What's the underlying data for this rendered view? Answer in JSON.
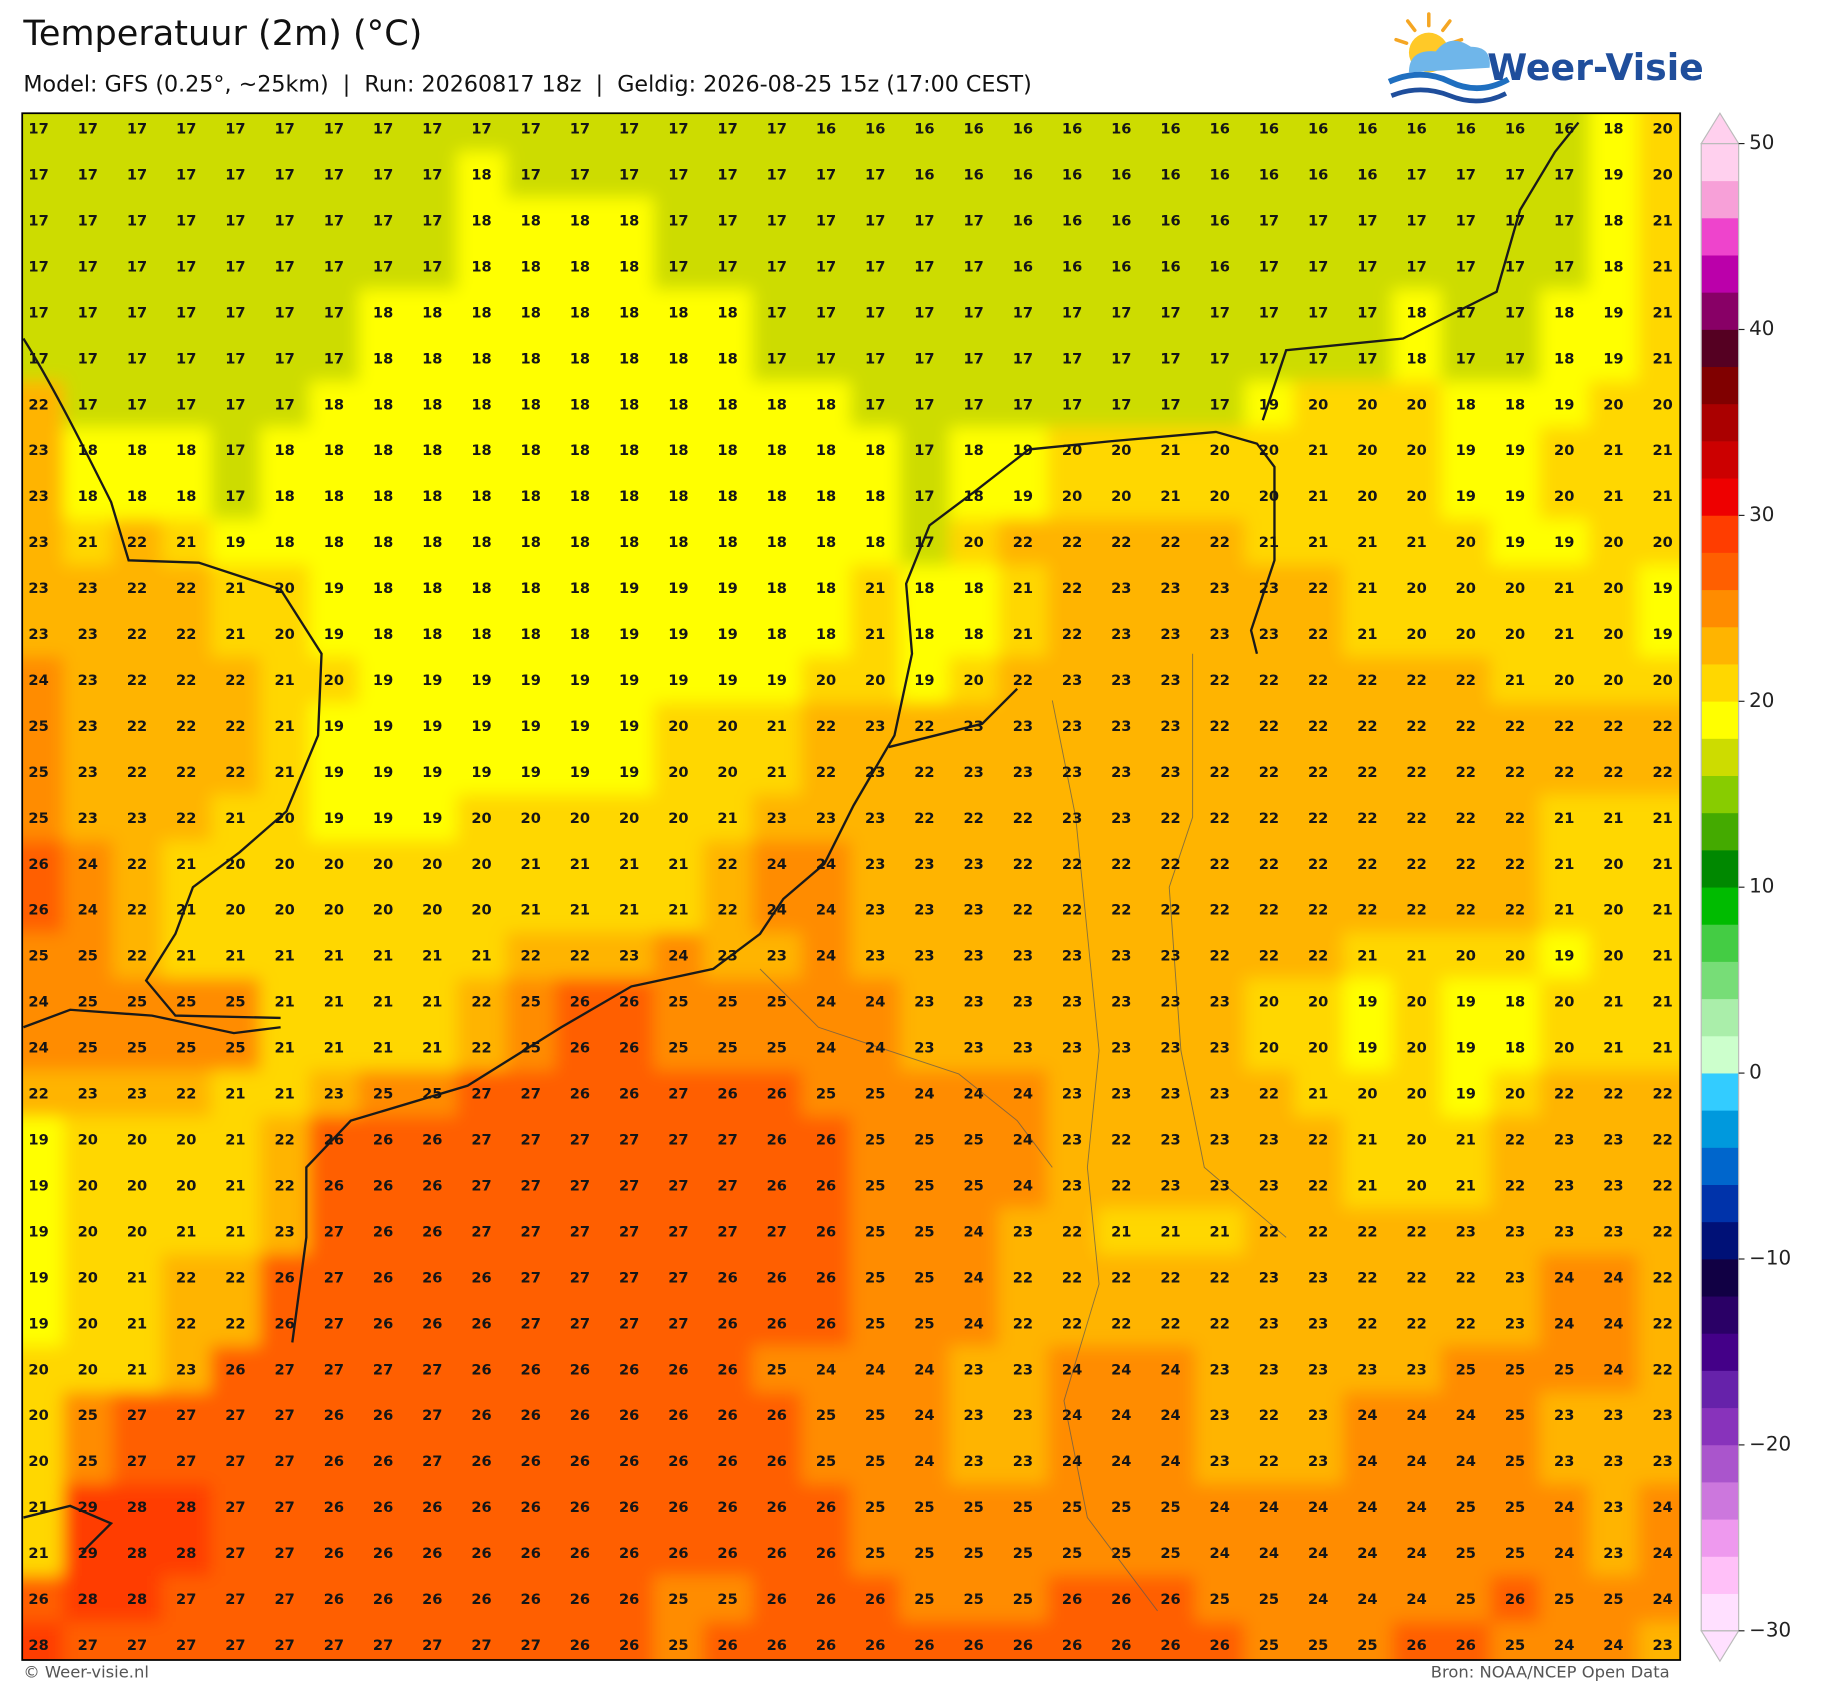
{
  "header": {
    "title": "Temperatuur (2m) (°C)",
    "subtitle": "Model: GFS (0.25°, ~25km)  |  Run: 20260817 18z  |  Geldig: 2026-08-25 15z (17:00 CEST)"
  },
  "logo": {
    "text": "Weer-Visie"
  },
  "map": {
    "grid": [
      [
        17,
        17,
        17,
        17,
        17,
        17,
        17,
        17,
        17,
        17,
        17,
        17,
        17,
        17,
        17,
        17,
        16,
        16,
        16,
        16,
        16,
        16,
        16,
        16,
        16,
        16,
        16,
        16,
        16,
        16,
        16,
        16,
        18,
        20
      ],
      [
        17,
        17,
        17,
        17,
        17,
        17,
        17,
        17,
        17,
        18,
        17,
        17,
        17,
        17,
        17,
        17,
        17,
        17,
        16,
        16,
        16,
        16,
        16,
        16,
        16,
        16,
        16,
        16,
        17,
        17,
        17,
        17,
        19,
        20
      ],
      [
        17,
        17,
        17,
        17,
        17,
        17,
        17,
        17,
        17,
        18,
        18,
        18,
        18,
        17,
        17,
        17,
        17,
        17,
        17,
        17,
        16,
        16,
        16,
        16,
        16,
        17,
        17,
        17,
        17,
        17,
        17,
        17,
        18,
        21
      ],
      [
        17,
        17,
        17,
        17,
        17,
        17,
        17,
        17,
        17,
        18,
        18,
        18,
        18,
        17,
        17,
        17,
        17,
        17,
        17,
        17,
        16,
        16,
        16,
        16,
        16,
        17,
        17,
        17,
        17,
        17,
        17,
        17,
        18,
        21
      ],
      [
        17,
        17,
        17,
        17,
        17,
        17,
        17,
        18,
        18,
        18,
        18,
        18,
        18,
        18,
        18,
        17,
        17,
        17,
        17,
        17,
        17,
        17,
        17,
        17,
        17,
        17,
        17,
        17,
        18,
        17,
        17,
        18,
        19,
        21
      ],
      [
        17,
        17,
        17,
        17,
        17,
        17,
        17,
        18,
        18,
        18,
        18,
        18,
        18,
        18,
        18,
        17,
        17,
        17,
        17,
        17,
        17,
        17,
        17,
        17,
        17,
        17,
        17,
        17,
        18,
        17,
        17,
        18,
        19,
        21
      ],
      [
        22,
        17,
        17,
        17,
        17,
        17,
        18,
        18,
        18,
        18,
        18,
        18,
        18,
        18,
        18,
        18,
        18,
        17,
        17,
        17,
        17,
        17,
        17,
        17,
        17,
        19,
        20,
        20,
        20,
        18,
        18,
        19,
        20,
        20
      ],
      [
        23,
        18,
        18,
        18,
        17,
        18,
        18,
        18,
        18,
        18,
        18,
        18,
        18,
        18,
        18,
        18,
        18,
        18,
        17,
        18,
        19,
        20,
        20,
        21,
        20,
        20,
        21,
        20,
        20,
        19,
        19,
        20,
        21,
        21
      ],
      [
        23,
        18,
        18,
        18,
        17,
        18,
        18,
        18,
        18,
        18,
        18,
        18,
        18,
        18,
        18,
        18,
        18,
        18,
        17,
        18,
        19,
        20,
        20,
        21,
        20,
        20,
        21,
        20,
        20,
        19,
        19,
        20,
        21,
        21
      ],
      [
        23,
        21,
        22,
        21,
        19,
        18,
        18,
        18,
        18,
        18,
        18,
        18,
        18,
        18,
        18,
        18,
        18,
        18,
        17,
        20,
        22,
        22,
        22,
        22,
        22,
        21,
        21,
        21,
        21,
        20,
        19,
        19,
        20,
        20
      ],
      [
        23,
        23,
        22,
        22,
        21,
        20,
        19,
        18,
        18,
        18,
        18,
        18,
        19,
        19,
        19,
        18,
        18,
        21,
        18,
        18,
        21,
        22,
        23,
        23,
        23,
        23,
        22,
        21,
        20,
        20,
        20,
        21,
        20,
        19
      ],
      [
        23,
        23,
        22,
        22,
        21,
        20,
        19,
        18,
        18,
        18,
        18,
        18,
        19,
        19,
        19,
        18,
        18,
        21,
        18,
        18,
        21,
        22,
        23,
        23,
        23,
        23,
        22,
        21,
        20,
        20,
        20,
        21,
        20,
        19
      ],
      [
        24,
        23,
        22,
        22,
        22,
        21,
        20,
        19,
        19,
        19,
        19,
        19,
        19,
        19,
        19,
        19,
        20,
        20,
        19,
        20,
        22,
        23,
        23,
        23,
        22,
        22,
        22,
        22,
        22,
        22,
        21,
        20,
        20,
        20
      ],
      [
        25,
        23,
        22,
        22,
        22,
        21,
        19,
        19,
        19,
        19,
        19,
        19,
        19,
        20,
        20,
        21,
        22,
        23,
        22,
        23,
        23,
        23,
        23,
        23,
        22,
        22,
        22,
        22,
        22,
        22,
        22,
        22,
        22,
        22
      ],
      [
        25,
        23,
        22,
        22,
        22,
        21,
        19,
        19,
        19,
        19,
        19,
        19,
        19,
        20,
        20,
        21,
        22,
        23,
        22,
        23,
        23,
        23,
        23,
        23,
        22,
        22,
        22,
        22,
        22,
        22,
        22,
        22,
        22,
        22
      ],
      [
        25,
        23,
        23,
        22,
        21,
        20,
        19,
        19,
        19,
        20,
        20,
        20,
        20,
        20,
        21,
        23,
        23,
        23,
        22,
        22,
        22,
        23,
        23,
        22,
        22,
        22,
        22,
        22,
        22,
        22,
        22,
        21,
        21,
        21
      ],
      [
        26,
        24,
        22,
        21,
        20,
        20,
        20,
        20,
        20,
        20,
        21,
        21,
        21,
        21,
        22,
        24,
        24,
        23,
        23,
        23,
        22,
        22,
        22,
        22,
        22,
        22,
        22,
        22,
        22,
        22,
        22,
        21,
        20,
        21
      ],
      [
        26,
        24,
        22,
        21,
        20,
        20,
        20,
        20,
        20,
        20,
        21,
        21,
        21,
        21,
        22,
        24,
        24,
        23,
        23,
        23,
        22,
        22,
        22,
        22,
        22,
        22,
        22,
        22,
        22,
        22,
        22,
        21,
        20,
        21
      ],
      [
        25,
        25,
        22,
        21,
        21,
        21,
        21,
        21,
        21,
        21,
        22,
        22,
        23,
        24,
        23,
        23,
        24,
        23,
        23,
        23,
        23,
        23,
        23,
        23,
        22,
        22,
        22,
        21,
        21,
        20,
        20,
        19,
        20,
        21
      ],
      [
        24,
        25,
        25,
        25,
        25,
        21,
        21,
        21,
        21,
        22,
        25,
        26,
        26,
        25,
        25,
        25,
        24,
        24,
        23,
        23,
        23,
        23,
        23,
        23,
        23,
        20,
        20,
        19,
        20,
        19,
        18,
        20,
        21,
        21
      ],
      [
        24,
        25,
        25,
        25,
        25,
        21,
        21,
        21,
        21,
        22,
        25,
        26,
        26,
        25,
        25,
        25,
        24,
        24,
        23,
        23,
        23,
        23,
        23,
        23,
        23,
        20,
        20,
        19,
        20,
        19,
        18,
        20,
        21,
        21
      ],
      [
        22,
        23,
        23,
        22,
        21,
        21,
        23,
        25,
        25,
        27,
        27,
        26,
        26,
        27,
        26,
        26,
        25,
        25,
        24,
        24,
        24,
        23,
        23,
        23,
        23,
        22,
        21,
        20,
        20,
        19,
        20,
        22,
        22,
        22
      ],
      [
        19,
        20,
        20,
        20,
        21,
        22,
        26,
        26,
        26,
        27,
        27,
        27,
        27,
        27,
        27,
        26,
        26,
        25,
        25,
        25,
        24,
        23,
        22,
        23,
        23,
        23,
        22,
        21,
        20,
        21,
        22,
        23,
        23,
        22
      ],
      [
        19,
        20,
        20,
        20,
        21,
        22,
        26,
        26,
        26,
        27,
        27,
        27,
        27,
        27,
        27,
        26,
        26,
        25,
        25,
        25,
        24,
        23,
        22,
        23,
        23,
        23,
        22,
        21,
        20,
        21,
        22,
        23,
        23,
        22
      ],
      [
        19,
        20,
        20,
        21,
        21,
        23,
        27,
        26,
        26,
        27,
        27,
        27,
        27,
        27,
        27,
        27,
        26,
        25,
        25,
        24,
        23,
        22,
        21,
        21,
        21,
        22,
        22,
        22,
        22,
        23,
        23,
        23,
        23,
        22
      ],
      [
        19,
        20,
        21,
        22,
        22,
        26,
        27,
        26,
        26,
        26,
        27,
        27,
        27,
        27,
        26,
        26,
        26,
        25,
        25,
        24,
        22,
        22,
        22,
        22,
        22,
        23,
        23,
        22,
        22,
        22,
        23,
        24,
        24,
        22
      ],
      [
        19,
        20,
        21,
        22,
        22,
        26,
        27,
        26,
        26,
        26,
        27,
        27,
        27,
        27,
        26,
        26,
        26,
        25,
        25,
        24,
        22,
        22,
        22,
        22,
        22,
        23,
        23,
        22,
        22,
        22,
        23,
        24,
        24,
        22
      ],
      [
        20,
        20,
        21,
        23,
        26,
        27,
        27,
        27,
        27,
        26,
        26,
        26,
        26,
        26,
        26,
        25,
        24,
        24,
        24,
        23,
        23,
        24,
        24,
        24,
        23,
        23,
        23,
        23,
        23,
        25,
        25,
        25,
        24,
        22
      ],
      [
        20,
        25,
        27,
        27,
        27,
        27,
        26,
        26,
        27,
        26,
        26,
        26,
        26,
        26,
        26,
        26,
        25,
        25,
        24,
        23,
        23,
        24,
        24,
        24,
        23,
        22,
        23,
        24,
        24,
        24,
        25,
        23,
        23,
        23
      ],
      [
        20,
        25,
        27,
        27,
        27,
        27,
        26,
        26,
        27,
        26,
        26,
        26,
        26,
        26,
        26,
        26,
        25,
        25,
        24,
        23,
        23,
        24,
        24,
        24,
        23,
        22,
        23,
        24,
        24,
        24,
        25,
        23,
        23,
        23
      ],
      [
        21,
        29,
        28,
        28,
        27,
        27,
        26,
        26,
        26,
        26,
        26,
        26,
        26,
        26,
        26,
        26,
        26,
        25,
        25,
        25,
        25,
        25,
        25,
        25,
        24,
        24,
        24,
        24,
        24,
        25,
        25,
        24,
        23,
        24
      ],
      [
        21,
        29,
        28,
        28,
        27,
        27,
        26,
        26,
        26,
        26,
        26,
        26,
        26,
        26,
        26,
        26,
        26,
        25,
        25,
        25,
        25,
        25,
        25,
        25,
        24,
        24,
        24,
        24,
        24,
        25,
        25,
        24,
        23,
        24
      ],
      [
        26,
        28,
        28,
        27,
        27,
        27,
        26,
        26,
        26,
        26,
        26,
        26,
        26,
        25,
        25,
        26,
        26,
        26,
        25,
        25,
        25,
        26,
        26,
        26,
        25,
        25,
        24,
        24,
        24,
        25,
        26,
        25,
        25,
        24
      ],
      [
        28,
        27,
        27,
        27,
        27,
        27,
        27,
        27,
        27,
        27,
        27,
        26,
        26,
        25,
        26,
        26,
        26,
        26,
        26,
        26,
        26,
        26,
        26,
        26,
        26,
        25,
        25,
        25,
        26,
        26,
        25,
        24,
        24,
        23
      ]
    ]
  },
  "colorbar": {
    "lim": [
      -30,
      50
    ],
    "ticks": [
      50,
      40,
      30,
      20,
      10,
      0,
      {
        "value": -10,
        "label": "−10"
      },
      {
        "value": -20,
        "label": "−20"
      },
      {
        "value": -30,
        "label": "−30"
      }
    ],
    "colors": [
      "#ffe0ff",
      "#ffc0f8",
      "#ee99ee",
      "#cc77dd",
      "#aa55cc",
      "#8833bb",
      "#6622aa",
      "#440088",
      "#2a0066",
      "#110044",
      "#001177",
      "#0033aa",
      "#0066cc",
      "#0099dd",
      "#33ccff",
      "#ccffcc",
      "#aaeeaa",
      "#77dd77",
      "#44cc44",
      "#00bb00",
      "#008800",
      "#44aa00",
      "#88cc00",
      "#cddc00",
      "#ffff00",
      "#ffd700",
      "#ffb400",
      "#ff8c00",
      "#ff5f00",
      "#ff3d00",
      "#ee0000",
      "#cc0000",
      "#aa0000",
      "#800000",
      "#550022",
      "#880066",
      "#bb00aa",
      "#ee44cc",
      "#f7a0d8",
      "#ffd0ee"
    ]
  },
  "footer": {
    "left": "© Weer-visie.nl",
    "right": "Bron: NOAA/NCEP Open Data"
  }
}
